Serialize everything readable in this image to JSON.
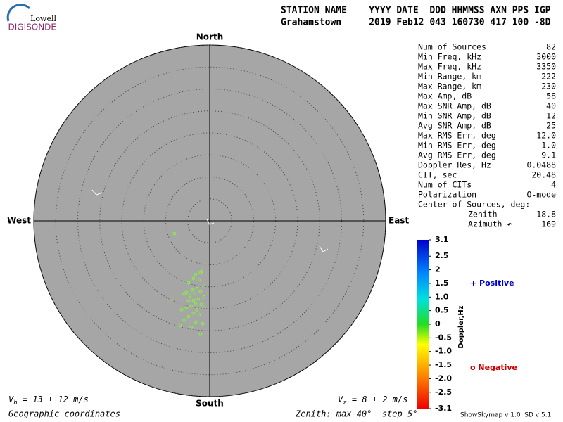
{
  "header": {
    "logo_top": "Lowell",
    "logo_bottom": "DIGISONDE",
    "line1": "STATION NAME    YYYY DATE  DDD HHMMSS AXN PPS IGP",
    "line2": "Grahamstown     2019 Feb12 043 160730 417 100 -8D"
  },
  "chart_data": {
    "type": "scatter",
    "color": "#88ee44",
    "directions": {
      "north": "North",
      "south": "South",
      "east": "East",
      "west": "West"
    },
    "xlim": [
      -40,
      40
    ],
    "ylim": [
      -40,
      40
    ],
    "rings": [
      5,
      10,
      15,
      20,
      25,
      30,
      35,
      40
    ],
    "x": [
      -8.0,
      -2.1,
      -3.2,
      -1.8,
      -3.7,
      -2.4,
      -4.8,
      -1.3,
      -2.9,
      -4.0,
      -5.3,
      -2.1,
      -3.4,
      -4.5,
      -5.8,
      -1.3,
      -2.6,
      -3.7,
      -4.8,
      -8.8,
      -3.2,
      -1.9,
      -4.2,
      -5.3,
      -2.9,
      -1.3,
      -6.4,
      -3.7,
      -2.4,
      -4.8,
      -5.8,
      -3.2,
      -1.6,
      -4.2,
      -6.7,
      -2.1
    ],
    "y": [
      -2.9,
      -11.8,
      -12.2,
      -11.5,
      -13.1,
      -13.4,
      -14.1,
      -15.0,
      -15.4,
      -15.7,
      -16.3,
      -16.2,
      -16.6,
      -17.0,
      -16.6,
      -17.3,
      -17.8,
      -18.1,
      -18.2,
      -17.8,
      -18.9,
      -19.0,
      -19.4,
      -19.8,
      -20.2,
      -19.8,
      -20.2,
      -21.0,
      -21.4,
      -21.8,
      -22.6,
      -23.0,
      -23.4,
      -24.2,
      -23.8,
      -25.8
    ],
    "colorbar": {
      "label": "Doppler,Hz",
      "lim": [
        -3.1,
        3.1
      ],
      "ticks": [
        3.1,
        2.5,
        2,
        1.5,
        {
          "value": 1,
          "label": "1.0"
        },
        0.5,
        0,
        -0.5,
        {
          "value": -1,
          "label": "-1.0"
        },
        -1.5,
        {
          "value": -2,
          "label": "-2.0"
        },
        -2.5,
        -3.1
      ]
    }
  },
  "stats": [
    [
      "Num of Sources",
      "82"
    ],
    [
      "Min Freq, kHz",
      "3000"
    ],
    [
      "Max Freq, kHz",
      "3350"
    ],
    [
      "Min Range, km",
      "222"
    ],
    [
      "Max Range, km",
      "230"
    ],
    [
      "Max Amp, dB",
      "58"
    ],
    [
      "Max SNR Amp, dB",
      "40"
    ],
    [
      "Min SNR Amp, dB",
      "12"
    ],
    [
      "Avg SNR Amp, dB",
      "25"
    ],
    [
      "Max RMS Err, deg",
      "12.0"
    ],
    [
      "Min RMS Err, deg",
      "1.0"
    ],
    [
      "Avg RMS Err, deg",
      "9.1"
    ],
    [
      "Doppler Res, Hz",
      "0.0488"
    ],
    [
      "CIT, sec",
      "20.48"
    ],
    [
      "Num of CITs",
      "4"
    ],
    [
      "Polarization",
      "O-mode"
    ]
  ],
  "center": {
    "title": "Center of Sources, deg:",
    "zenith_label": "Zenith",
    "zenith": "18.8",
    "azimuth_label": "Azimuth ↶",
    "azimuth": "169"
  },
  "legend": {
    "positive": "+ Positive",
    "negative": "o Negative"
  },
  "footer": {
    "vh_v": "V",
    "vh_sub": "h",
    "vh_rest": " = 13 ± 12 m/s",
    "vz_v": "V",
    "vz_sub": "z",
    "vz_rest": " = 8 ± 2 m/s",
    "coords": "Geographic coordinates",
    "zenith": "Zenith: max 40°  step 5°",
    "version": "ShowSkymap v 1.0  SD v 5.1"
  }
}
